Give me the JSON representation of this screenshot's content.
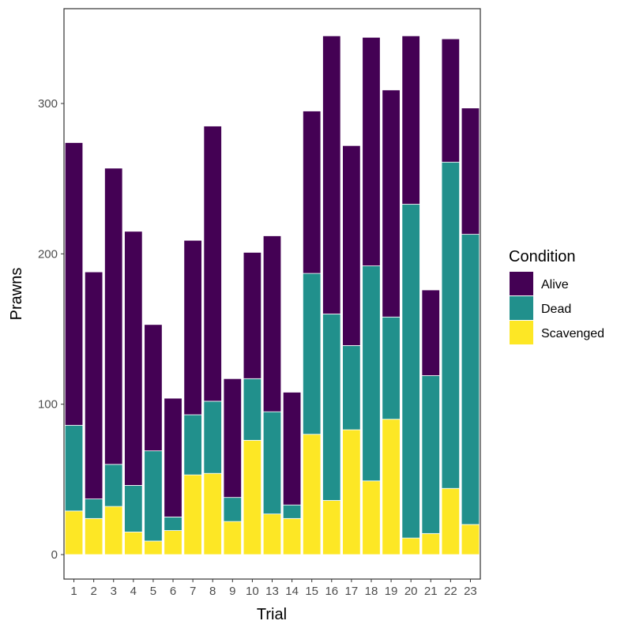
{
  "chart_data": {
    "type": "bar",
    "stacked": true,
    "xlabel": "Trial",
    "ylabel": "Prawns",
    "ylim": [
      0,
      360
    ],
    "yticks": [
      0,
      100,
      200,
      300
    ],
    "grid": false,
    "legend_title": "Condition",
    "legend_position": "right",
    "categories": [
      "1",
      "2",
      "3",
      "4",
      "5",
      "6",
      "7",
      "8",
      "9",
      "10",
      "13",
      "14",
      "15",
      "16",
      "17",
      "18",
      "19",
      "20",
      "21",
      "22",
      "23"
    ],
    "series": [
      {
        "name": "Scavenged",
        "color": "#FDE725",
        "values": [
          29,
          24,
          32,
          15,
          9,
          16,
          53,
          54,
          22,
          76,
          27,
          24,
          80,
          36,
          83,
          49,
          90,
          11,
          14,
          44,
          20
        ]
      },
      {
        "name": "Dead",
        "color": "#21908C",
        "values": [
          57,
          13,
          28,
          31,
          60,
          9,
          40,
          48,
          16,
          41,
          68,
          9,
          107,
          124,
          56,
          143,
          68,
          222,
          105,
          217,
          193
        ]
      },
      {
        "name": "Alive",
        "color": "#440154",
        "values": [
          188,
          151,
          197,
          169,
          84,
          79,
          116,
          183,
          79,
          84,
          117,
          75,
          108,
          185,
          133,
          152,
          151,
          112,
          57,
          82,
          84
        ]
      }
    ],
    "legend_order": [
      "Alive",
      "Dead",
      "Scavenged"
    ]
  }
}
